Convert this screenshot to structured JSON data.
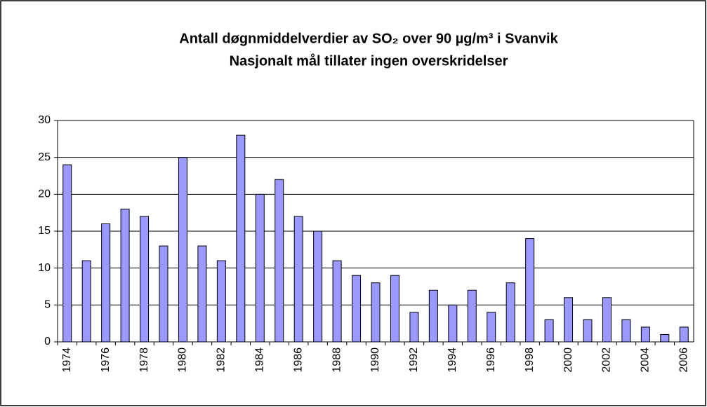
{
  "chart_data": {
    "type": "bar",
    "title": "Antall døgnmiddelverdier av SO₂ over 90 µg/m³ i Svanvik",
    "subtitle": "Nasjonalt mål tillater ingen overskridelser",
    "categories": [
      "1974",
      null,
      "1976",
      null,
      "1978",
      null,
      "1980",
      null,
      "1982",
      null,
      "1984",
      null,
      "1986",
      null,
      "1988",
      null,
      "1990",
      null,
      "1992",
      null,
      "1994",
      null,
      "1996",
      null,
      "1998",
      null,
      "2000",
      null,
      "2002",
      null,
      "2004",
      null,
      "2006"
    ],
    "values": [
      24,
      11,
      16,
      18,
      17,
      13,
      25,
      13,
      11,
      28,
      20,
      22,
      17,
      15,
      11,
      9,
      8,
      9,
      4,
      7,
      5,
      7,
      4,
      8,
      14,
      3,
      6,
      3,
      6,
      3,
      2,
      1,
      2
    ],
    "color": "#9999ff",
    "ylim": [
      0,
      30
    ],
    "yticks": [
      0,
      5,
      10,
      15,
      20,
      25,
      30
    ],
    "grid": true
  }
}
